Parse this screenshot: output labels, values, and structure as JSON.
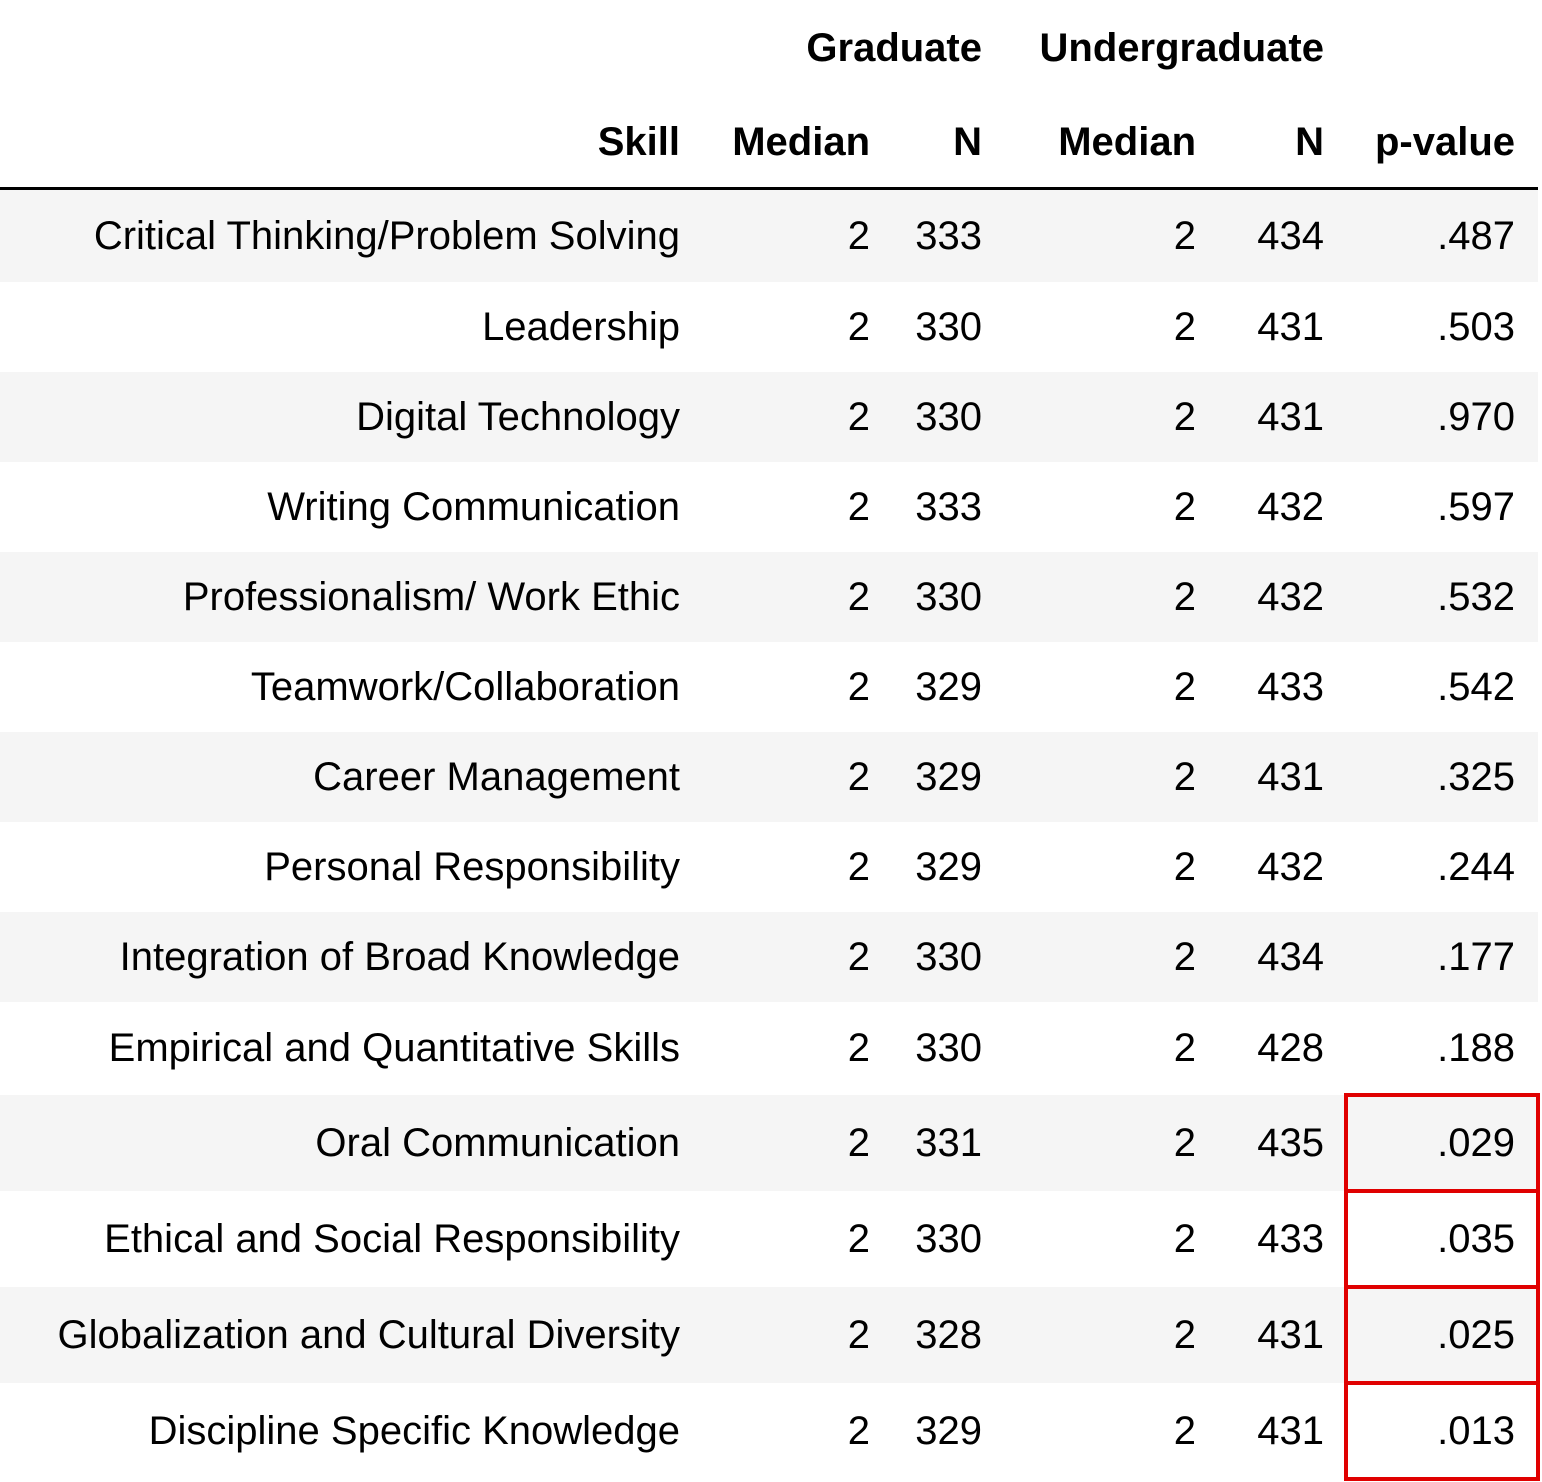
{
  "chart_data": {
    "type": "table",
    "column_groups": [
      "Graduate",
      "Undergraduate"
    ],
    "columns": [
      "Skill",
      "Median",
      "N",
      "Median",
      "N",
      "p-value"
    ],
    "rows": [
      [
        "Critical Thinking/Problem Solving",
        "2",
        "333",
        "2",
        "434",
        ".487"
      ],
      [
        "Leadership",
        "2",
        "330",
        "2",
        "431",
        ".503"
      ],
      [
        "Digital Technology",
        "2",
        "330",
        "2",
        "431",
        ".970"
      ],
      [
        "Writing Communication",
        "2",
        "333",
        "2",
        "432",
        ".597"
      ],
      [
        "Professionalism/ Work Ethic",
        "2",
        "330",
        "2",
        "432",
        ".532"
      ],
      [
        "Teamwork/Collaboration",
        "2",
        "329",
        "2",
        "433",
        ".542"
      ],
      [
        "Career Management",
        "2",
        "329",
        "2",
        "431",
        ".325"
      ],
      [
        "Personal Responsibility",
        "2",
        "329",
        "2",
        "432",
        ".244"
      ],
      [
        "Integration of Broad Knowledge",
        "2",
        "330",
        "2",
        "434",
        ".177"
      ],
      [
        "Empirical and Quantitative Skills",
        "2",
        "330",
        "2",
        "428",
        ".188"
      ],
      [
        "Oral Communication",
        "2",
        "331",
        "2",
        "435",
        ".029"
      ],
      [
        "Ethical and Social Responsibility",
        "2",
        "330",
        "2",
        "433",
        ".035"
      ],
      [
        "Globalization and Cultural Diversity",
        "2",
        "328",
        "2",
        "431",
        ".025"
      ],
      [
        "Discipline Specific Knowledge",
        "2",
        "329",
        "2",
        "431",
        ".013"
      ]
    ],
    "highlighted_rows": [
      10,
      11,
      12,
      13
    ],
    "highlighted_column": "p-value",
    "highlight_color": "#e00000",
    "stripe_color": "#f5f5f5"
  }
}
